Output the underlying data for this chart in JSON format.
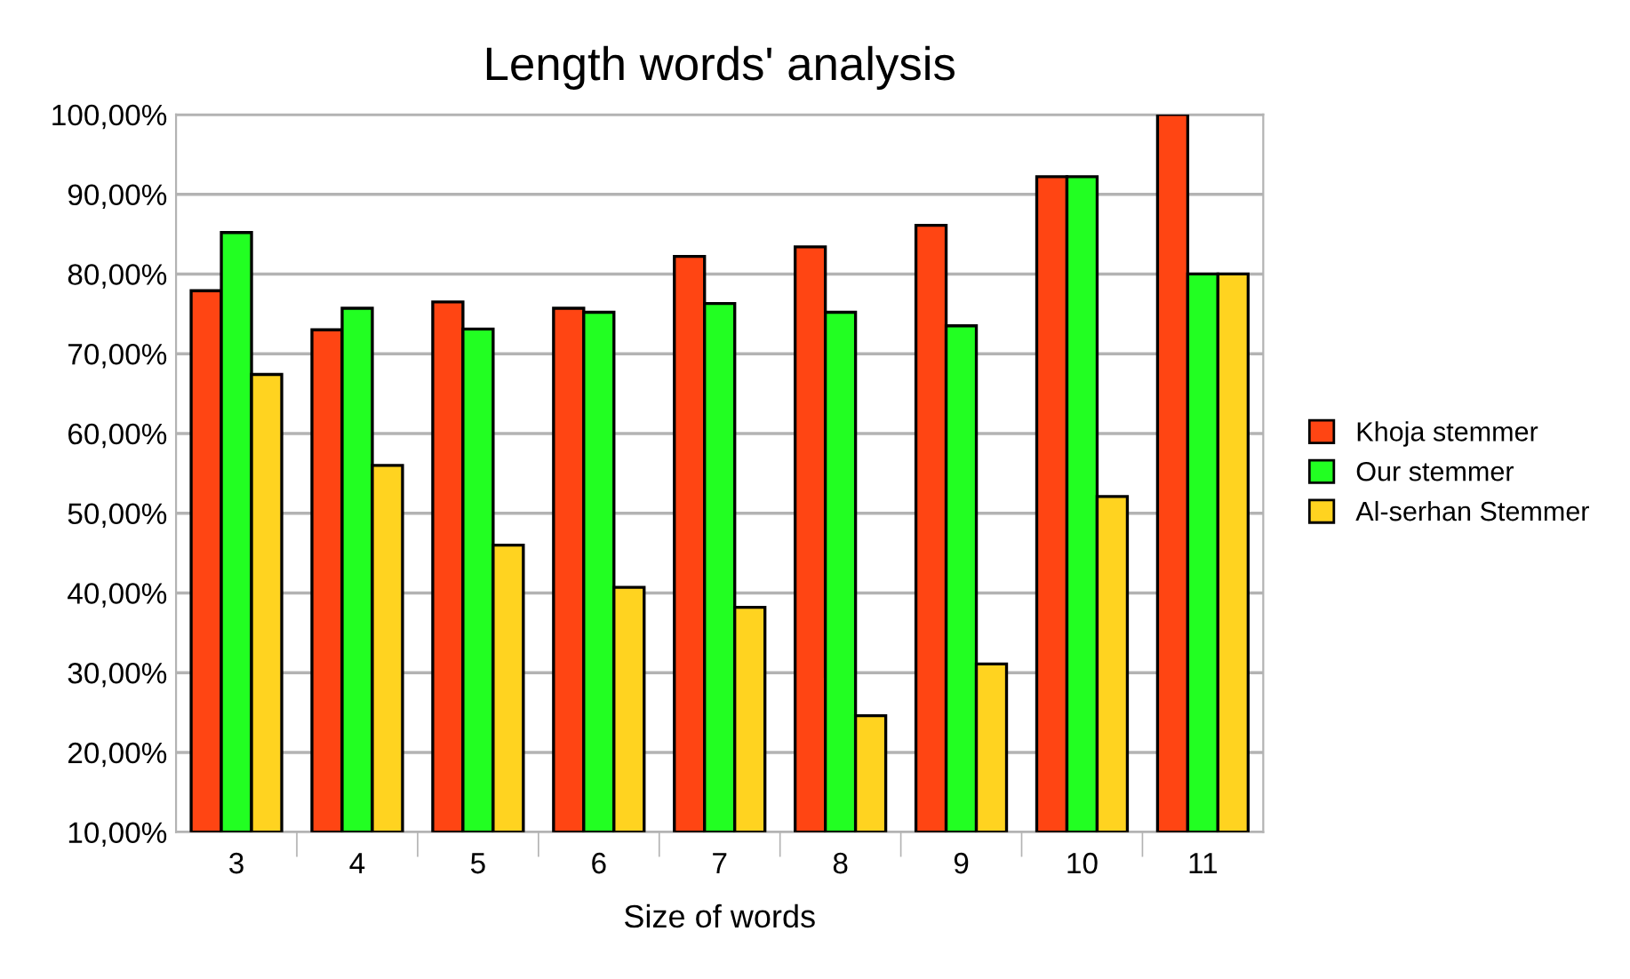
{
  "chart_data": {
    "type": "bar",
    "title": "Length words' analysis",
    "xlabel": "Size of words",
    "categories": [
      "3",
      "4",
      "5",
      "6",
      "7",
      "8",
      "9",
      "10",
      "11"
    ],
    "series": [
      {
        "name": "Khoja stemmer",
        "color": "#ff4513",
        "values": [
          77.9,
          73.0,
          76.5,
          75.7,
          82.2,
          83.4,
          86.1,
          92.2,
          100
        ]
      },
      {
        "name": "Our stemmer",
        "color": "#22ff22",
        "values": [
          85.2,
          75.7,
          73.1,
          75.2,
          76.3,
          75.2,
          73.5,
          92.2,
          80
        ]
      },
      {
        "name": "Al-serhan Stemmer",
        "color": "#ffd320",
        "values": [
          67.4,
          56.0,
          46.0,
          40.7,
          38.2,
          24.6,
          31.1,
          52.1,
          80
        ]
      }
    ],
    "ylim": [
      10,
      100
    ],
    "yticks": [
      {
        "value": 10,
        "label": "10,00%"
      },
      {
        "value": 20,
        "label": "20,00%"
      },
      {
        "value": 30,
        "label": "30,00%"
      },
      {
        "value": 40,
        "label": "40,00%"
      },
      {
        "value": 50,
        "label": "50,00%"
      },
      {
        "value": 60,
        "label": "60,00%"
      },
      {
        "value": 70,
        "label": "70,00%"
      },
      {
        "value": 80,
        "label": "80,00%"
      },
      {
        "value": 90,
        "label": "90,00%"
      },
      {
        "value": 100,
        "label": "100,00%"
      }
    ],
    "grid": "y",
    "legend": "right"
  }
}
